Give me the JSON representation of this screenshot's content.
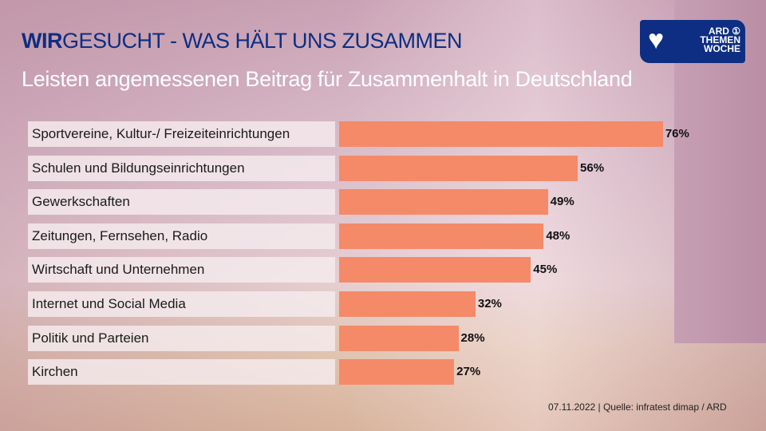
{
  "header": {
    "title_bold": "WIR",
    "title_rest": "GESUCHT - WAS HÄLT UNS ZUSAMMEN",
    "subtitle": "Leisten angemessenen Beitrag für Zusammenhalt in Deutschland",
    "logo_text": "ARD THEMEN WOCHE"
  },
  "chart_data": {
    "type": "bar",
    "orientation": "horizontal",
    "title": "Leisten angemessenen Beitrag für Zusammenhalt in Deutschland",
    "categories": [
      "Sportvereine, Kultur-/ Freizeiteinrichtungen",
      "Schulen und Bildungseinrichtungen",
      "Gewerkschaften",
      "Zeitungen, Fernsehen, Radio",
      "Wirtschaft und Unternehmen",
      "Internet und Social Media",
      "Politik und Parteien",
      "Kirchen"
    ],
    "values": [
      76,
      56,
      49,
      48,
      45,
      32,
      28,
      27
    ],
    "labels": [
      "76%",
      "56%",
      "49%",
      "48%",
      "45%",
      "32%",
      "28%",
      "27%"
    ],
    "unit": "%",
    "xlim": [
      0,
      100
    ],
    "bar_color": "#f48a68"
  },
  "footer": {
    "source": "07.11.2022 | Quelle: infratest dimap / ARD"
  }
}
